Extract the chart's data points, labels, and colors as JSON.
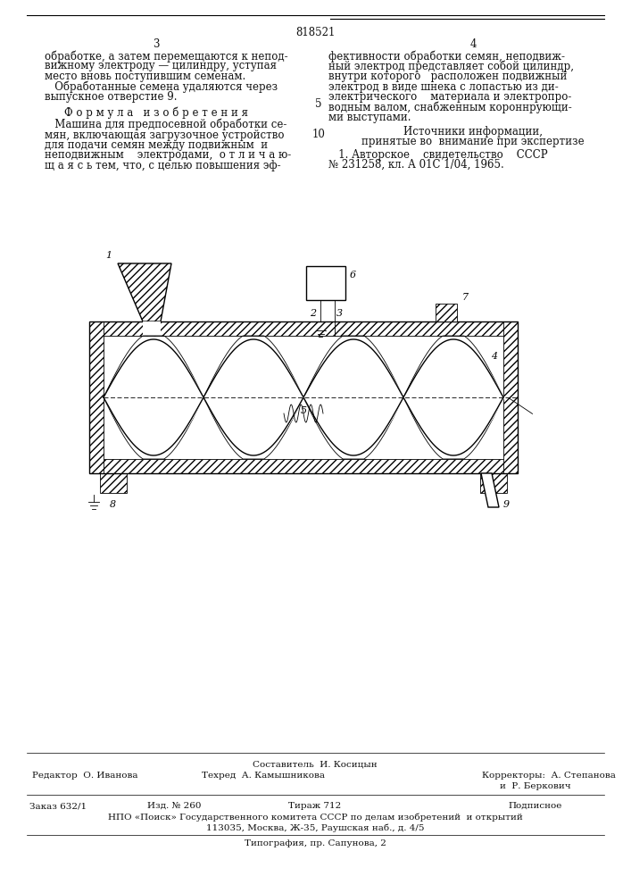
{
  "bg_color": "#ffffff",
  "text_color": "#111111",
  "page_number": "818521",
  "col_left_num": "3",
  "col_right_num": "4",
  "fs_main": 8.5,
  "fs_label": 7.5,
  "fs_diagram_label": 8.0
}
